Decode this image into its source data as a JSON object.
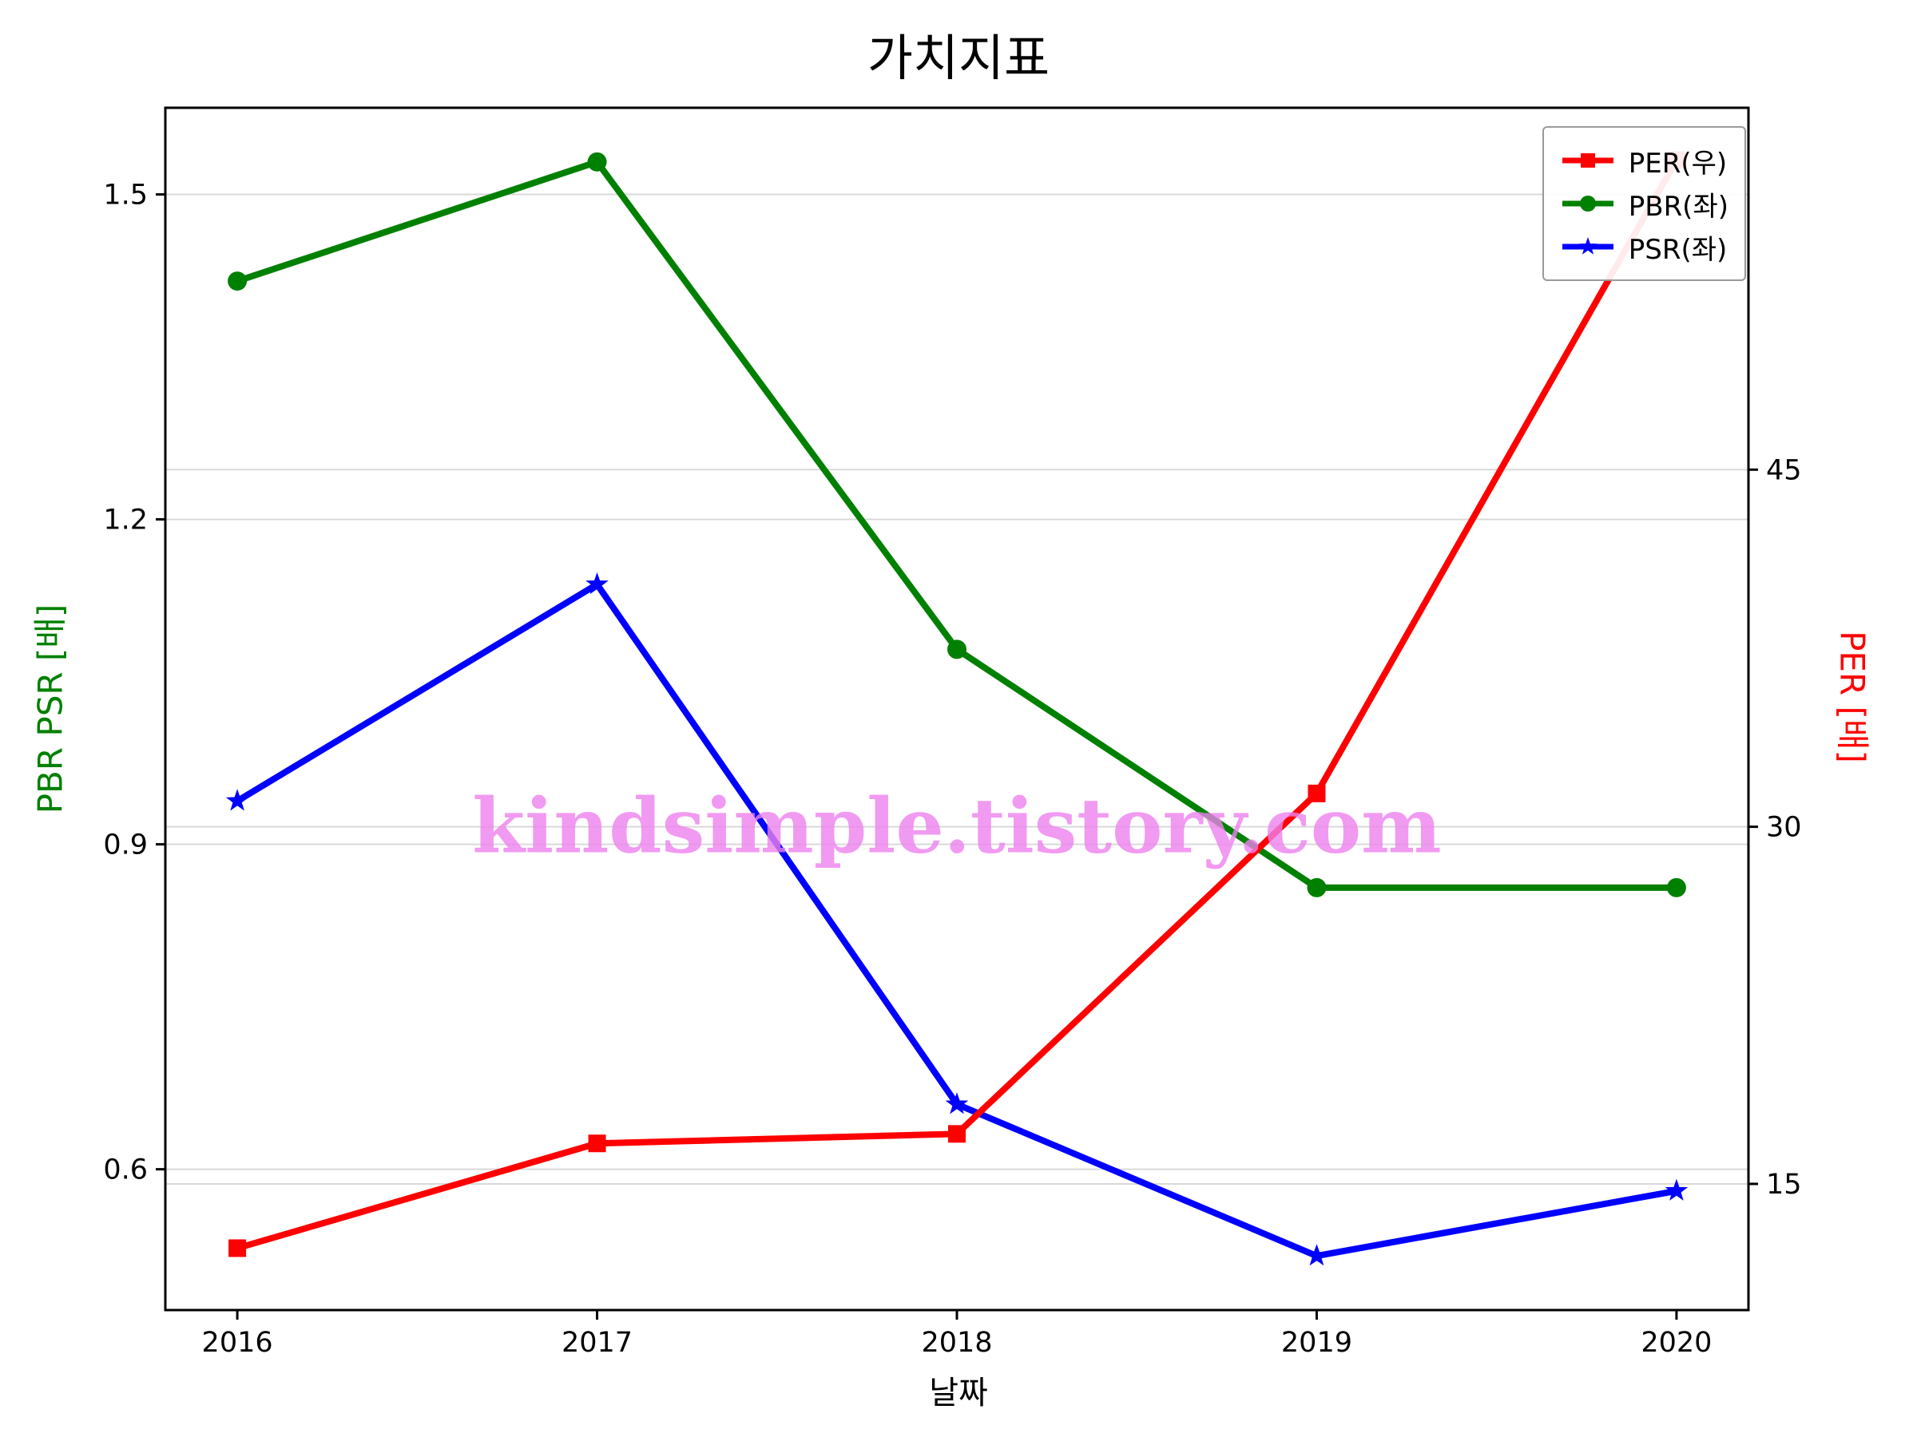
{
  "figure": {
    "title": "가치지표",
    "watermark": "kindsimple.tistory.com"
  },
  "chart_data": {
    "type": "line",
    "title": "가치지표",
    "xlabel": "날짜",
    "ylabel_left": "PBR PSR [배]",
    "ylabel_right": "PER [배]",
    "categories": [
      "2016",
      "2017",
      "2018",
      "2019",
      "2020"
    ],
    "series": [
      {
        "name": "PER(우)",
        "axis": "right",
        "color": "#ff0000",
        "marker": "square",
        "values": [
          12.3,
          16.7,
          17.1,
          31.4,
          58.0
        ]
      },
      {
        "name": "PBR(좌)",
        "axis": "left",
        "color": "#008000",
        "marker": "circle",
        "values": [
          1.42,
          1.53,
          1.08,
          0.86,
          0.86
        ]
      },
      {
        "name": "PSR(좌)",
        "axis": "left",
        "color": "#0000ff",
        "marker": "star",
        "values": [
          0.94,
          1.14,
          0.66,
          0.52,
          0.58
        ]
      }
    ],
    "ylim_left": [
      0.47,
      1.58
    ],
    "ylim_right": [
      9.7,
      60.2
    ],
    "yticks_left": [
      0.6,
      0.9,
      1.2,
      1.5
    ],
    "yticks_right": [
      15,
      30,
      45
    ],
    "grid": true,
    "legend_position": "upper right",
    "colors": {
      "left_label": "#008000",
      "right_label": "#ff0000",
      "watermark": "#ee82ee",
      "grid": "#d9d9d9",
      "spine": "#000000"
    }
  }
}
